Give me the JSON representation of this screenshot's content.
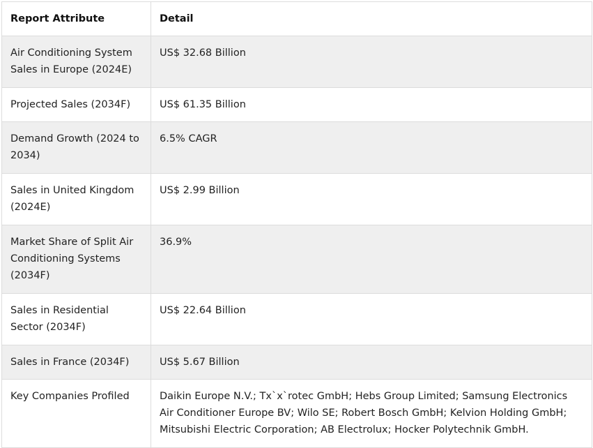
{
  "table": {
    "headers": [
      "Report Attribute",
      "Detail"
    ],
    "rows": [
      {
        "attribute": "Air Conditioning System Sales in Europe (2024E)",
        "detail": "US$ 32.68 Billion"
      },
      {
        "attribute": "Projected Sales (2034F)",
        "detail": "US$ 61.35 Billion"
      },
      {
        "attribute": "Demand Growth (2024 to 2034)",
        "detail": "6.5% CAGR"
      },
      {
        "attribute": "Sales in United Kingdom (2024E)",
        "detail": "US$ 2.99 Billion"
      },
      {
        "attribute": "Market Share of Split Air Conditioning Systems (2034F)",
        "detail": "36.9%"
      },
      {
        "attribute": "Sales in Residential Sector (2034F)",
        "detail": "US$ 22.64 Billion"
      },
      {
        "attribute": "Sales in France (2034F)",
        "detail": "US$ 5.67 Billion"
      },
      {
        "attribute": "Key Companies Profiled",
        "detail": "Daikin Europe N.V.; Tx`x`rotec GmbH; Hebs Group Limited; Samsung Electronics Air Conditioner Europe BV; Wilo SE; Robert Bosch GmbH; Kelvion Holding GmbH; Mitsubishi Electric Corporation; AB Electrolux; Hocker Polytechnik GmbH."
      }
    ]
  }
}
